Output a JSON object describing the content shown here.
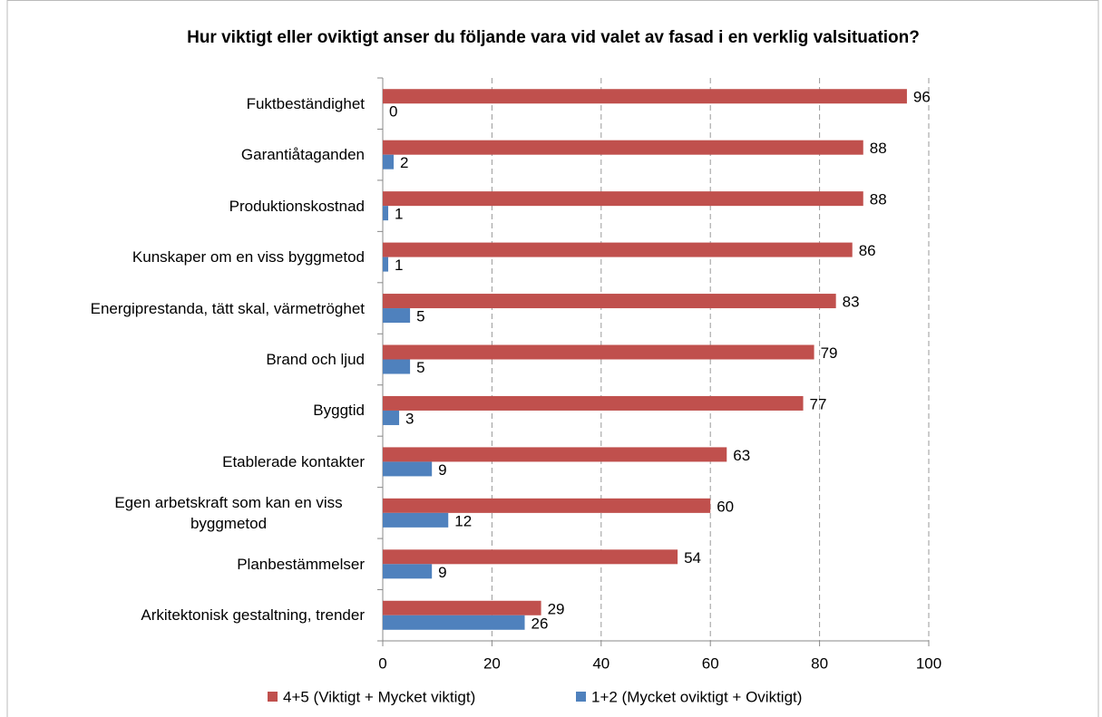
{
  "chart_data": {
    "type": "barh",
    "title": "Hur viktigt eller oviktigt anser du följande vara vid valet av fasad i en verklig valsituation?",
    "categories": [
      "Fuktbeständighet",
      "Garantiåtaganden",
      "Produktionskostnad",
      "Kunskaper om en viss byggmetod",
      "Energiprestanda, tätt skal, värmetröghet",
      "Brand och ljud",
      "Byggtid",
      "Etablerade kontakter",
      "Egen arbetskraft som kan en viss byggmetod",
      "Planbestämmelser",
      "Arkitektonisk gestaltning, trender"
    ],
    "series": [
      {
        "name": "4+5 (Viktigt + Mycket viktigt)",
        "color": "#c0504d",
        "values": [
          96,
          88,
          88,
          86,
          83,
          79,
          77,
          63,
          60,
          54,
          29
        ]
      },
      {
        "name": "1+2 (Mycket oviktigt + Oviktigt)",
        "color": "#4f81bd",
        "values": [
          0,
          2,
          1,
          1,
          5,
          5,
          3,
          9,
          12,
          9,
          26
        ]
      }
    ],
    "xlim": [
      0,
      100
    ],
    "xticks": [
      0,
      20,
      40,
      60,
      80,
      100
    ],
    "grid": true,
    "legend": "bottom"
  }
}
